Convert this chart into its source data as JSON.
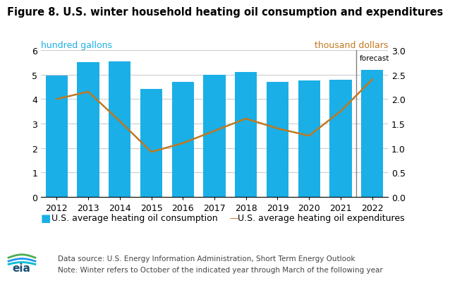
{
  "title": "Figure 8. U.S. winter household heating oil consumption and expenditures",
  "ylabel_left": "hundred gallons",
  "ylabel_right": "thousand dollars",
  "years": [
    2012,
    2013,
    2014,
    2015,
    2016,
    2017,
    2018,
    2019,
    2020,
    2021,
    2022
  ],
  "consumption": [
    4.95,
    5.5,
    5.55,
    4.4,
    4.7,
    5.0,
    5.12,
    4.7,
    4.75,
    4.8,
    5.2
  ],
  "expenditures": [
    2.0,
    2.15,
    1.55,
    0.92,
    1.1,
    1.35,
    1.6,
    1.4,
    1.25,
    1.75,
    2.4
  ],
  "bar_color": "#1aafe6",
  "line_color": "#c07820",
  "forecast_year": 2022,
  "ylim_left": [
    0,
    6
  ],
  "ylim_right": [
    0,
    3.0
  ],
  "yticks_left": [
    0,
    1,
    2,
    3,
    4,
    5,
    6
  ],
  "yticks_right": [
    0.0,
    0.5,
    1.0,
    1.5,
    2.0,
    2.5,
    3.0
  ],
  "legend_bar_label": "U.S. average heating oil consumption",
  "legend_line_label": "U.S. average heating oil expenditures",
  "footnote_line1": "Data source: U.S. Energy Information Administration, Short Term Energy Outlook",
  "footnote_line2": "Note: Winter refers to October of the indicated year through March of the following year",
  "title_fontsize": 10.5,
  "axis_label_fontsize": 9,
  "tick_fontsize": 9,
  "legend_fontsize": 9,
  "footnote_fontsize": 7.5,
  "left_label_color": "#1aafe6",
  "right_label_color": "#c07820",
  "background_color": "#ffffff",
  "grid_color": "#cccccc"
}
